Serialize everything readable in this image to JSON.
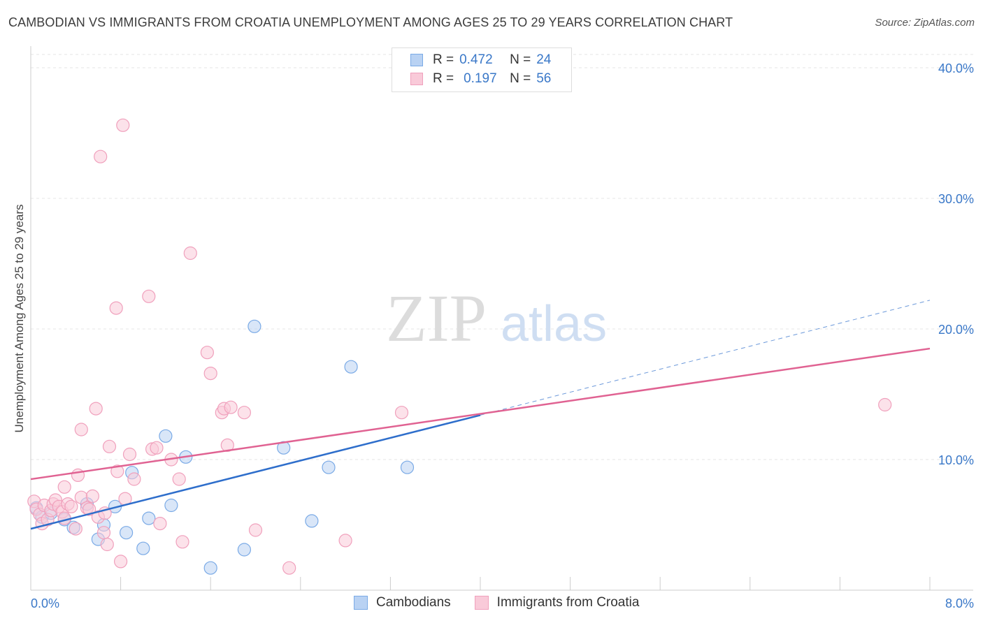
{
  "title": "CAMBODIAN VS IMMIGRANTS FROM CROATIA UNEMPLOYMENT AMONG AGES 25 TO 29 YEARS CORRELATION CHART",
  "source": "Source: ZipAtlas.com",
  "watermark": {
    "zip": "ZIP",
    "atlas": "atlas"
  },
  "legend": {
    "rows": [
      {
        "r_label": "R =",
        "r_value": "0.472",
        "n_label": "N =",
        "n_value": "24"
      },
      {
        "r_label": "R =",
        "r_value": "0.197",
        "n_label": "N =",
        "n_value": "56"
      }
    ]
  },
  "chart_data": {
    "type": "scatter",
    "title": "CAMBODIAN VS IMMIGRANTS FROM CROATIA UNEMPLOYMENT AMONG AGES 25 TO 29 YEARS CORRELATION CHART",
    "xlabel": "",
    "ylabel": "Unemployment Among Ages 25 to 29 years",
    "xlim": [
      0,
      8
    ],
    "ylim": [
      0,
      40
    ],
    "x_tick_labels": [
      "0.0%",
      "8.0%"
    ],
    "y_ticks": [
      10,
      20,
      30,
      40
    ],
    "y_tick_labels": [
      "10.0%",
      "20.0%",
      "30.0%",
      "40.0%"
    ],
    "grid": true,
    "legend_position": "top-center",
    "series": [
      {
        "name": "Cambodians",
        "color": "#7aaae6",
        "fill": "#b9d2f3",
        "line_color": "#2e6ecb",
        "r": 0.472,
        "n": 24,
        "trend": {
          "x0": 0.0,
          "y0": 4.7,
          "x1": 4.0,
          "y1": 13.4,
          "dashed_to_x": 8.0,
          "dashed_to_y": 22.2
        },
        "points": [
          [
            0.05,
            6.3
          ],
          [
            0.1,
            5.6
          ],
          [
            0.18,
            5.9
          ],
          [
            0.3,
            5.4
          ],
          [
            0.38,
            4.8
          ],
          [
            0.5,
            6.6
          ],
          [
            0.6,
            3.9
          ],
          [
            0.65,
            5.0
          ],
          [
            0.75,
            6.4
          ],
          [
            0.85,
            4.4
          ],
          [
            0.9,
            9.0
          ],
          [
            1.0,
            3.2
          ],
          [
            1.05,
            5.5
          ],
          [
            1.2,
            11.8
          ],
          [
            1.25,
            6.5
          ],
          [
            1.38,
            10.2
          ],
          [
            1.6,
            1.7
          ],
          [
            1.9,
            3.1
          ],
          [
            1.99,
            20.2
          ],
          [
            2.25,
            10.9
          ],
          [
            2.5,
            5.3
          ],
          [
            2.65,
            9.4
          ],
          [
            2.85,
            17.1
          ],
          [
            3.35,
            9.4
          ]
        ]
      },
      {
        "name": "Immigrants from Croatia",
        "color": "#f0a0bc",
        "fill": "#f9cad9",
        "line_color": "#e06292",
        "r": 0.197,
        "n": 56,
        "trend": {
          "x0": 0.0,
          "y0": 8.5,
          "x1": 8.0,
          "y1": 18.5
        },
        "points": [
          [
            0.03,
            6.8
          ],
          [
            0.05,
            6.2
          ],
          [
            0.08,
            5.8
          ],
          [
            0.1,
            5.1
          ],
          [
            0.12,
            6.5
          ],
          [
            0.15,
            5.4
          ],
          [
            0.18,
            6.1
          ],
          [
            0.2,
            6.6
          ],
          [
            0.22,
            6.9
          ],
          [
            0.25,
            6.4
          ],
          [
            0.28,
            6.0
          ],
          [
            0.3,
            5.5
          ],
          [
            0.3,
            7.9
          ],
          [
            0.33,
            6.6
          ],
          [
            0.36,
            6.4
          ],
          [
            0.4,
            4.7
          ],
          [
            0.42,
            8.8
          ],
          [
            0.45,
            7.1
          ],
          [
            0.45,
            12.3
          ],
          [
            0.5,
            6.3
          ],
          [
            0.52,
            6.2
          ],
          [
            0.55,
            7.2
          ],
          [
            0.58,
            13.9
          ],
          [
            0.6,
            5.6
          ],
          [
            0.62,
            33.2
          ],
          [
            0.65,
            4.4
          ],
          [
            0.66,
            5.9
          ],
          [
            0.68,
            3.5
          ],
          [
            0.7,
            11.0
          ],
          [
            0.76,
            21.6
          ],
          [
            0.77,
            9.1
          ],
          [
            0.8,
            2.2
          ],
          [
            0.82,
            35.6
          ],
          [
            0.84,
            7.0
          ],
          [
            0.88,
            10.4
          ],
          [
            0.92,
            8.5
          ],
          [
            1.05,
            22.5
          ],
          [
            1.08,
            10.8
          ],
          [
            1.12,
            10.9
          ],
          [
            1.15,
            5.1
          ],
          [
            1.25,
            10.0
          ],
          [
            1.32,
            8.5
          ],
          [
            1.35,
            3.7
          ],
          [
            1.42,
            25.8
          ],
          [
            1.57,
            18.2
          ],
          [
            1.6,
            16.6
          ],
          [
            1.7,
            13.6
          ],
          [
            1.72,
            13.9
          ],
          [
            1.75,
            11.1
          ],
          [
            1.78,
            14.0
          ],
          [
            1.9,
            13.6
          ],
          [
            2.0,
            4.6
          ],
          [
            2.3,
            1.7
          ],
          [
            2.8,
            3.8
          ],
          [
            3.3,
            13.6
          ],
          [
            7.6,
            14.2
          ]
        ]
      }
    ]
  },
  "bottom_legend": {
    "items": [
      "Cambodians",
      "Immigrants from Croatia"
    ]
  }
}
